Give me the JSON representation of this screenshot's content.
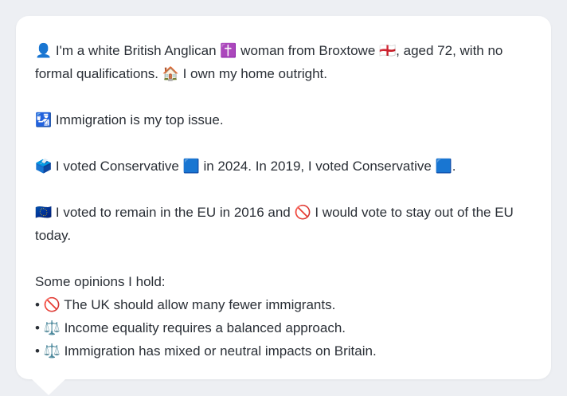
{
  "paragraphs": [
    "👤 I'm a white British Anglican ✝️ woman from Broxtowe 🏴󠁧󠁢󠁥󠁮󠁧󠁿, aged 72, with no formal qualifications. 🏠 I own my home outright.",
    "🛂 Immigration is my top issue.",
    "🗳️ I voted Conservative 🟦 in 2024. In 2019, I voted Conservative 🟦.",
    "🇪🇺 I voted to remain in the EU in 2016 and 🚫 I would vote to stay out of the EU today."
  ],
  "opinions": {
    "heading": "Some opinions I hold:",
    "items": [
      "• 🚫 The UK should allow many fewer immigrants.",
      "• ⚖️ Income equality requires a balanced approach.",
      "• ⚖️ Immigration has mixed or neutral impacts on Britain."
    ]
  }
}
